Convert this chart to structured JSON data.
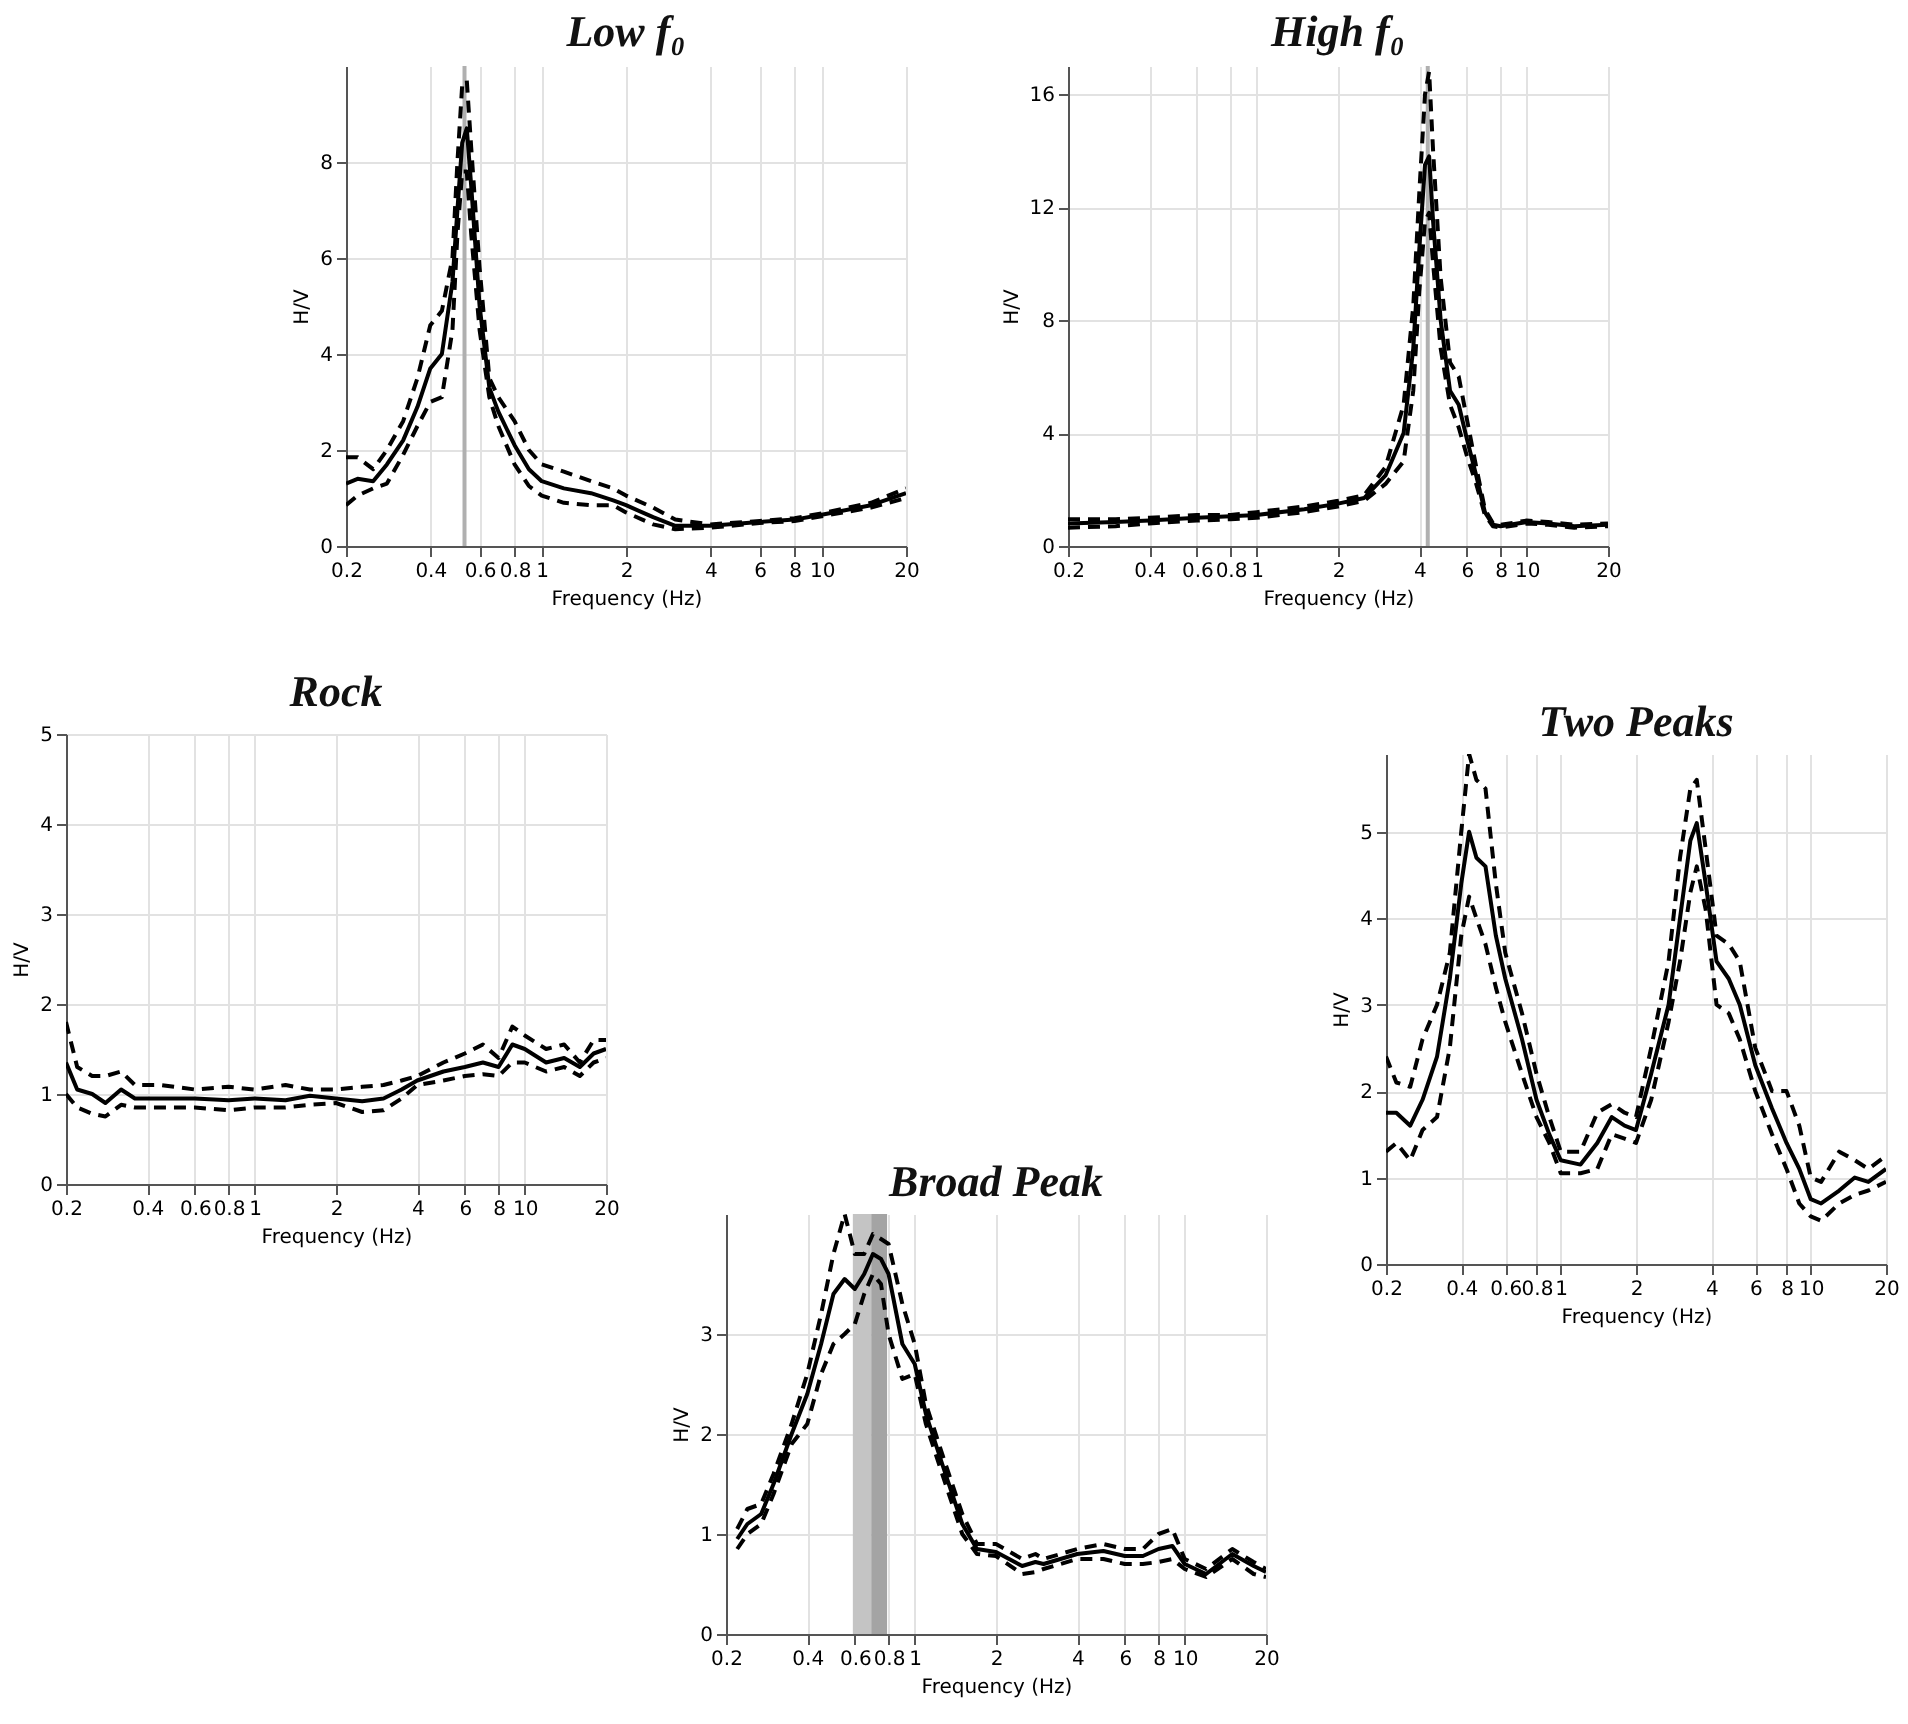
{
  "chart_data": [
    {
      "type": "line",
      "title": "Low f₀",
      "xlabel": "Frequency (Hz)",
      "ylabel": "H/V",
      "log": "x",
      "grid": true,
      "xlim": [
        0.2,
        20
      ],
      "xticks": [
        0.2,
        0.4,
        0.6,
        0.8,
        1,
        2,
        4,
        6,
        8,
        10,
        20
      ],
      "ylim": [
        0,
        10
      ],
      "yticks": [
        0,
        2,
        4,
        6,
        8
      ],
      "ref_lines": [
        {
          "axis": "x",
          "value": 0.53,
          "color": "#b0b0b0"
        }
      ],
      "x": [
        0.2,
        0.22,
        0.25,
        0.28,
        0.32,
        0.36,
        0.4,
        0.44,
        0.48,
        0.5,
        0.52,
        0.54,
        0.56,
        0.6,
        0.65,
        0.7,
        0.8,
        0.9,
        1,
        1.2,
        1.5,
        1.8,
        2,
        2.5,
        3,
        4,
        6,
        8,
        10,
        15,
        20
      ],
      "series": [
        {
          "color": "#000000",
          "line_style": "dashed",
          "values": [
            1.85,
            1.85,
            1.6,
            2.0,
            2.6,
            3.5,
            4.6,
            4.9,
            6.0,
            8.0,
            9.6,
            9.7,
            8.3,
            5.8,
            3.5,
            3.1,
            2.6,
            2.0,
            1.7,
            1.55,
            1.35,
            1.2,
            1.05,
            0.8,
            0.55,
            0.45,
            0.52,
            0.58,
            0.68,
            0.9,
            1.2
          ]
        },
        {
          "color": "#000000",
          "line_style": "solid",
          "values": [
            1.3,
            1.4,
            1.35,
            1.7,
            2.2,
            2.9,
            3.7,
            4.0,
            5.5,
            7.0,
            8.4,
            8.7,
            7.5,
            5.0,
            3.3,
            2.8,
            2.1,
            1.6,
            1.35,
            1.2,
            1.1,
            0.95,
            0.85,
            0.6,
            0.42,
            0.42,
            0.5,
            0.55,
            0.65,
            0.85,
            1.1
          ]
        },
        {
          "color": "#000000",
          "line_style": "dashed",
          "values": [
            0.85,
            1.05,
            1.2,
            1.3,
            1.9,
            2.5,
            3.0,
            3.1,
            4.5,
            6.5,
            7.8,
            7.8,
            6.5,
            4.5,
            3.1,
            2.5,
            1.7,
            1.25,
            1.05,
            0.9,
            0.85,
            0.85,
            0.7,
            0.45,
            0.35,
            0.38,
            0.48,
            0.52,
            0.62,
            0.8,
            1.0
          ]
        }
      ]
    },
    {
      "type": "line",
      "title": "High f₀",
      "xlabel": "Frequency (Hz)",
      "ylabel": "H/V",
      "log": "x",
      "grid": true,
      "xlim": [
        0.2,
        20
      ],
      "xticks": [
        0.2,
        0.4,
        0.6,
        0.8,
        1,
        2,
        4,
        6,
        8,
        10,
        20
      ],
      "ylim": [
        0,
        17
      ],
      "yticks": [
        0,
        4,
        8,
        12,
        16
      ],
      "ref_lines": [
        {
          "axis": "x",
          "value": 4.3,
          "color": "#b0b0b0"
        }
      ],
      "x": [
        0.2,
        0.3,
        0.4,
        0.6,
        0.8,
        1,
        1.5,
        2,
        2.5,
        3,
        3.5,
        3.8,
        4.0,
        4.2,
        4.35,
        4.5,
        4.8,
        5.2,
        5.6,
        6,
        6.5,
        7,
        7.5,
        8,
        10,
        12,
        15,
        20
      ],
      "series": [
        {
          "color": "#000000",
          "line_style": "dashed",
          "values": [
            0.95,
            0.95,
            1.0,
            1.1,
            1.1,
            1.2,
            1.4,
            1.6,
            1.8,
            2.8,
            5.0,
            8.5,
            12.5,
            16.0,
            16.8,
            14,
            9.5,
            6.5,
            6.0,
            4.5,
            2.8,
            1.3,
            0.8,
            0.75,
            0.9,
            0.85,
            0.75,
            0.8
          ]
        },
        {
          "color": "#000000",
          "line_style": "solid",
          "values": [
            0.8,
            0.85,
            0.9,
            1.0,
            1.05,
            1.1,
            1.3,
            1.5,
            1.7,
            2.5,
            4.0,
            7,
            10.5,
            13.5,
            13.8,
            11.5,
            8,
            5.5,
            5.0,
            3.8,
            2.5,
            1.2,
            0.75,
            0.7,
            0.85,
            0.8,
            0.7,
            0.75
          ]
        },
        {
          "color": "#000000",
          "line_style": "dashed",
          "values": [
            0.65,
            0.7,
            0.8,
            0.9,
            0.95,
            1.0,
            1.2,
            1.4,
            1.6,
            2.2,
            3.0,
            5.5,
            9.0,
            11.5,
            11.8,
            10,
            7,
            5.0,
            4.2,
            3.2,
            2.2,
            1.1,
            0.7,
            0.65,
            0.8,
            0.75,
            0.65,
            0.7
          ]
        }
      ]
    },
    {
      "type": "line",
      "title": "Rock",
      "xlabel": "Frequency (Hz)",
      "ylabel": "H/V",
      "log": "x",
      "grid": true,
      "xlim": [
        0.2,
        20
      ],
      "xticks": [
        0.2,
        0.4,
        0.6,
        0.8,
        1,
        2,
        4,
        6,
        8,
        10,
        20
      ],
      "ylim": [
        0,
        5
      ],
      "yticks": [
        0,
        1,
        2,
        3,
        4,
        5
      ],
      "x": [
        0.2,
        0.22,
        0.25,
        0.28,
        0.32,
        0.36,
        0.45,
        0.6,
        0.8,
        1,
        1.3,
        1.6,
        2,
        2.5,
        3,
        3.5,
        4,
        5,
        6,
        7,
        8,
        9,
        10,
        12,
        14,
        16,
        18,
        20
      ],
      "series": [
        {
          "color": "#000000",
          "line_style": "dashed",
          "values": [
            1.8,
            1.3,
            1.2,
            1.2,
            1.25,
            1.1,
            1.1,
            1.05,
            1.08,
            1.05,
            1.1,
            1.05,
            1.05,
            1.08,
            1.1,
            1.15,
            1.2,
            1.35,
            1.45,
            1.55,
            1.4,
            1.75,
            1.65,
            1.5,
            1.55,
            1.35,
            1.6,
            1.6
          ]
        },
        {
          "color": "#000000",
          "line_style": "solid",
          "values": [
            1.35,
            1.05,
            1.0,
            0.9,
            1.05,
            0.95,
            0.95,
            0.95,
            0.93,
            0.95,
            0.93,
            0.98,
            0.95,
            0.92,
            0.95,
            1.05,
            1.15,
            1.25,
            1.3,
            1.35,
            1.3,
            1.55,
            1.5,
            1.35,
            1.4,
            1.3,
            1.45,
            1.5
          ]
        },
        {
          "color": "#000000",
          "line_style": "dashed",
          "values": [
            1.0,
            0.85,
            0.78,
            0.75,
            0.88,
            0.85,
            0.85,
            0.85,
            0.82,
            0.85,
            0.85,
            0.88,
            0.9,
            0.8,
            0.82,
            0.95,
            1.1,
            1.15,
            1.2,
            1.22,
            1.2,
            1.35,
            1.35,
            1.25,
            1.3,
            1.2,
            1.35,
            1.4
          ]
        }
      ]
    },
    {
      "type": "line",
      "title": "Two Peaks",
      "xlabel": "Frequency (Hz)",
      "ylabel": "H/V",
      "log": "x",
      "grid": true,
      "xlim": [
        0.2,
        20
      ],
      "xticks": [
        0.2,
        0.4,
        0.6,
        0.8,
        1,
        2,
        4,
        6,
        8,
        10,
        20
      ],
      "ylim": [
        0,
        5.9
      ],
      "yticks": [
        0,
        1,
        2,
        3,
        4,
        5
      ],
      "x": [
        0.2,
        0.22,
        0.25,
        0.28,
        0.32,
        0.36,
        0.4,
        0.43,
        0.46,
        0.5,
        0.55,
        0.6,
        0.7,
        0.8,
        0.9,
        1,
        1.2,
        1.4,
        1.6,
        1.8,
        2,
        2.3,
        2.7,
        3,
        3.3,
        3.5,
        3.8,
        4.2,
        4.7,
        5.2,
        6,
        7,
        8,
        9,
        10,
        11,
        13,
        15,
        17,
        20
      ],
      "series": [
        {
          "color": "#000000",
          "line_style": "dashed",
          "values": [
            2.4,
            2.1,
            2.05,
            2.6,
            3.0,
            3.6,
            5.0,
            5.9,
            5.6,
            5.5,
            4.4,
            3.6,
            2.9,
            2.2,
            1.7,
            1.3,
            1.3,
            1.75,
            1.85,
            1.75,
            1.7,
            2.5,
            3.5,
            4.7,
            5.5,
            5.6,
            4.8,
            3.8,
            3.7,
            3.5,
            2.5,
            2.0,
            2.0,
            1.6,
            1.0,
            0.95,
            1.3,
            1.2,
            1.1,
            1.25
          ]
        },
        {
          "color": "#000000",
          "line_style": "solid",
          "values": [
            1.75,
            1.75,
            1.6,
            1.9,
            2.4,
            3.3,
            4.4,
            5.0,
            4.7,
            4.6,
            3.8,
            3.3,
            2.6,
            1.9,
            1.5,
            1.2,
            1.15,
            1.4,
            1.7,
            1.6,
            1.55,
            2.2,
            3.0,
            4.0,
            4.9,
            5.1,
            4.4,
            3.5,
            3.3,
            3.0,
            2.3,
            1.8,
            1.4,
            1.1,
            0.75,
            0.7,
            0.85,
            1.0,
            0.95,
            1.1
          ]
        },
        {
          "color": "#000000",
          "line_style": "dashed",
          "values": [
            1.3,
            1.4,
            1.2,
            1.55,
            1.7,
            2.5,
            3.8,
            4.25,
            4.0,
            3.7,
            3.2,
            2.8,
            2.2,
            1.7,
            1.4,
            1.05,
            1.05,
            1.1,
            1.5,
            1.45,
            1.4,
            1.9,
            2.8,
            3.5,
            4.3,
            4.6,
            4.1,
            3.0,
            2.9,
            2.6,
            2.0,
            1.5,
            1.1,
            0.7,
            0.55,
            0.5,
            0.7,
            0.8,
            0.85,
            0.95
          ]
        }
      ]
    },
    {
      "type": "line",
      "title": "Broad Peak",
      "xlabel": "Frequency (Hz)",
      "ylabel": "H/V",
      "log": "x",
      "grid": true,
      "xlim": [
        0.2,
        20
      ],
      "xticks": [
        0.2,
        0.4,
        0.6,
        0.8,
        1,
        2,
        4,
        6,
        8,
        10,
        20
      ],
      "ylim": [
        0,
        4.2
      ],
      "yticks": [
        0,
        1,
        2,
        3
      ],
      "bands": [
        {
          "axis": "x",
          "from": 0.59,
          "to": 0.69,
          "color": "#c4c4c4"
        },
        {
          "axis": "x",
          "from": 0.69,
          "to": 0.79,
          "color": "#a4a4a4"
        }
      ],
      "x": [
        0.22,
        0.24,
        0.27,
        0.3,
        0.35,
        0.4,
        0.45,
        0.5,
        0.55,
        0.6,
        0.65,
        0.7,
        0.75,
        0.8,
        0.9,
        1,
        1.1,
        1.3,
        1.5,
        1.7,
        2,
        2.5,
        2.8,
        3,
        4,
        5,
        6,
        7,
        8,
        9,
        10,
        12,
        15,
        18,
        20
      ],
      "series": [
        {
          "color": "#000000",
          "line_style": "dashed",
          "values": [
            1.05,
            1.25,
            1.3,
            1.6,
            2.1,
            2.6,
            3.2,
            3.8,
            4.2,
            3.8,
            3.8,
            4.0,
            3.95,
            3.9,
            3.3,
            2.9,
            2.3,
            1.7,
            1.2,
            0.9,
            0.9,
            0.75,
            0.8,
            0.75,
            0.85,
            0.9,
            0.85,
            0.85,
            1.0,
            1.05,
            0.75,
            0.65,
            0.85,
            0.72,
            0.65
          ]
        },
        {
          "color": "#000000",
          "line_style": "solid",
          "values": [
            0.95,
            1.1,
            1.2,
            1.5,
            2.0,
            2.4,
            2.9,
            3.4,
            3.55,
            3.45,
            3.6,
            3.8,
            3.75,
            3.6,
            2.9,
            2.7,
            2.2,
            1.6,
            1.1,
            0.85,
            0.82,
            0.68,
            0.72,
            0.7,
            0.8,
            0.83,
            0.78,
            0.78,
            0.85,
            0.88,
            0.7,
            0.6,
            0.8,
            0.68,
            0.62
          ]
        },
        {
          "color": "#000000",
          "line_style": "dashed",
          "values": [
            0.85,
            1.0,
            1.1,
            1.4,
            1.9,
            2.1,
            2.6,
            2.9,
            3.0,
            3.1,
            3.4,
            3.6,
            3.5,
            3.0,
            2.55,
            2.6,
            2.1,
            1.5,
            1.0,
            0.8,
            0.78,
            0.6,
            0.62,
            0.65,
            0.75,
            0.75,
            0.7,
            0.7,
            0.72,
            0.75,
            0.65,
            0.57,
            0.75,
            0.6,
            0.57
          ]
        }
      ]
    }
  ]
}
